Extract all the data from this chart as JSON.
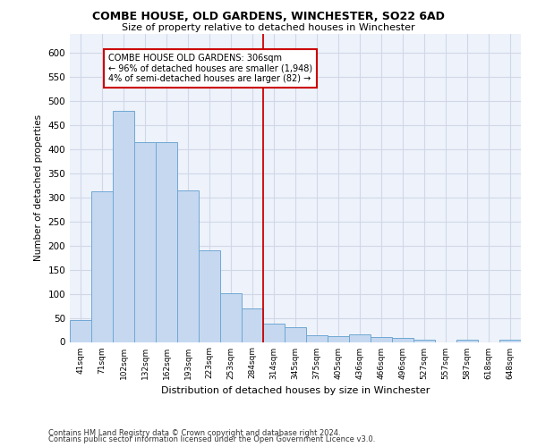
{
  "title": "COMBE HOUSE, OLD GARDENS, WINCHESTER, SO22 6AD",
  "subtitle": "Size of property relative to detached houses in Winchester",
  "xlabel": "Distribution of detached houses by size in Winchester",
  "ylabel": "Number of detached properties",
  "footnote1": "Contains HM Land Registry data © Crown copyright and database right 2024.",
  "footnote2": "Contains public sector information licensed under the Open Government Licence v3.0.",
  "categories": [
    "41sqm",
    "71sqm",
    "102sqm",
    "132sqm",
    "162sqm",
    "193sqm",
    "223sqm",
    "253sqm",
    "284sqm",
    "314sqm",
    "345sqm",
    "375sqm",
    "405sqm",
    "436sqm",
    "466sqm",
    "496sqm",
    "527sqm",
    "557sqm",
    "587sqm",
    "618sqm",
    "648sqm"
  ],
  "values": [
    46,
    312,
    480,
    415,
    415,
    315,
    190,
    102,
    70,
    38,
    30,
    14,
    12,
    15,
    10,
    9,
    5,
    0,
    5,
    0,
    5
  ],
  "bar_color": "#c5d8f0",
  "bar_edge_color": "#6fa8d4",
  "grid_color": "#d0d8e8",
  "background_color": "#eef2fa",
  "vline_color": "#cc0000",
  "annotation_text": "COMBE HOUSE OLD GARDENS: 306sqm\n← 96% of detached houses are smaller (1,948)\n4% of semi-detached houses are larger (82) →",
  "annotation_box_color": "#ffffff",
  "annotation_box_edge": "#cc0000",
  "ylim": [
    0,
    640
  ],
  "yticks": [
    0,
    50,
    100,
    150,
    200,
    250,
    300,
    350,
    400,
    450,
    500,
    550,
    600
  ]
}
